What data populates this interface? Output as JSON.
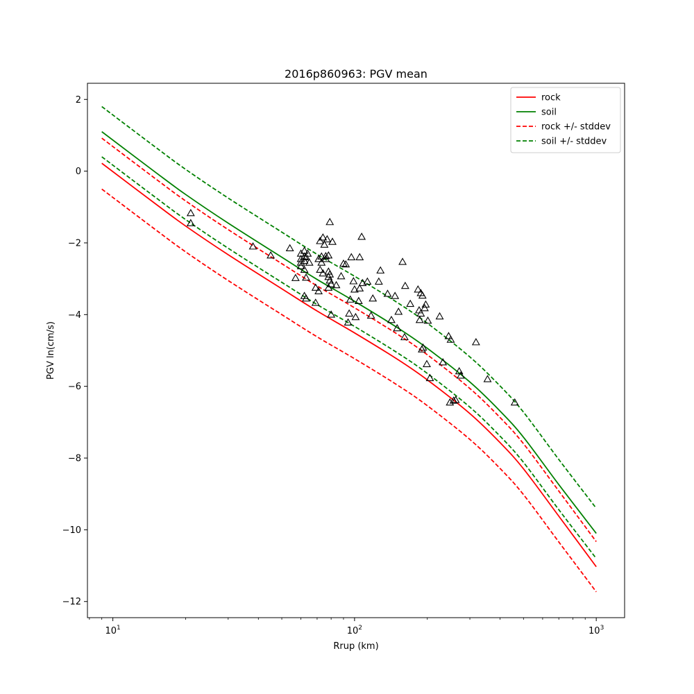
{
  "chart_data": {
    "type": "line",
    "title": "2016p860963: PGV mean",
    "xlabel": "Rrup (km)",
    "ylabel": "PGV ln(cm/s)",
    "xscale": "log",
    "xlim": [
      7.85,
      1310
    ],
    "ylim": [
      -12.45,
      2.45
    ],
    "grid": false,
    "legend_position": "top-right",
    "x_ticks": [
      {
        "value": 10,
        "base": "10",
        "exp": "1"
      },
      {
        "value": 100,
        "base": "10",
        "exp": "2"
      },
      {
        "value": 1000,
        "base": "10",
        "exp": "3"
      }
    ],
    "y_ticks": [
      {
        "value": 2,
        "label": "2"
      },
      {
        "value": 0,
        "label": "0"
      },
      {
        "value": -2,
        "label": "−2"
      },
      {
        "value": -4,
        "label": "−4"
      },
      {
        "value": -6,
        "label": "−6"
      },
      {
        "value": -8,
        "label": "−8"
      },
      {
        "value": -10,
        "label": "−10"
      },
      {
        "value": -12,
        "label": "−12"
      }
    ],
    "x": [
      9,
      15,
      20,
      30,
      50,
      70,
      100,
      150,
      200,
      300,
      400,
      500,
      700,
      1000
    ],
    "series": [
      {
        "name": "rock",
        "color": "#ff0000",
        "dashed": false,
        "values": [
          0.22,
          -0.91,
          -1.53,
          -2.33,
          -3.28,
          -3.9,
          -4.51,
          -5.24,
          -5.82,
          -6.76,
          -7.57,
          -8.3,
          -9.62,
          -11.03
        ]
      },
      {
        "name": "soil",
        "color": "#008000",
        "dashed": false,
        "values": [
          1.1,
          -0.03,
          -0.65,
          -1.45,
          -2.4,
          -3.02,
          -3.63,
          -4.36,
          -4.94,
          -5.88,
          -6.69,
          -7.42,
          -8.74,
          -10.1
        ]
      },
      {
        "name": "rock +/- stddev",
        "color": "#ff0000",
        "dashed": true,
        "values": [
          0.92,
          -0.21,
          -0.83,
          -1.63,
          -2.58,
          -3.2,
          -3.81,
          -4.54,
          -5.12,
          -6.06,
          -6.87,
          -7.6,
          -8.92,
          -10.33
        ]
      },
      {
        "name": "",
        "color": "#ff0000",
        "dashed": true,
        "legend": false,
        "values": [
          -0.5,
          -1.63,
          -2.25,
          -3.05,
          -4.0,
          -4.62,
          -5.23,
          -5.96,
          -6.54,
          -7.48,
          -8.29,
          -9.02,
          -10.34,
          -11.73
        ]
      },
      {
        "name": "soil +/- stddev",
        "color": "#008000",
        "dashed": true,
        "values": [
          1.8,
          0.67,
          0.05,
          -0.75,
          -1.7,
          -2.32,
          -2.93,
          -3.66,
          -4.24,
          -5.18,
          -5.99,
          -6.72,
          -8.04,
          -9.4
        ]
      },
      {
        "name": "",
        "color": "#008000",
        "dashed": true,
        "legend": false,
        "values": [
          0.4,
          -0.73,
          -1.35,
          -2.15,
          -3.1,
          -3.72,
          -4.33,
          -5.06,
          -5.64,
          -6.58,
          -7.39,
          -8.12,
          -9.44,
          -10.8
        ]
      }
    ],
    "scatter": {
      "marker": "triangle",
      "color": "#000000",
      "points": [
        [
          21,
          -1.17
        ],
        [
          21,
          -1.45
        ],
        [
          38,
          -2.1
        ],
        [
          45,
          -2.35
        ],
        [
          54,
          -2.15
        ],
        [
          57,
          -2.98
        ],
        [
          60,
          -2.3
        ],
        [
          60,
          -2.45
        ],
        [
          60,
          -2.55
        ],
        [
          60,
          -2.65
        ],
        [
          62,
          -2.22
        ],
        [
          62,
          -2.38
        ],
        [
          62,
          -2.5
        ],
        [
          62,
          -2.75
        ],
        [
          62,
          -3.48
        ],
        [
          63,
          -2.4
        ],
        [
          63,
          -2.97
        ],
        [
          63,
          -3.55
        ],
        [
          64,
          -2.3
        ],
        [
          65,
          -2.55
        ],
        [
          69,
          -3.25
        ],
        [
          69,
          -3.67
        ],
        [
          71,
          -2.45
        ],
        [
          71,
          -3.35
        ],
        [
          72,
          -1.95
        ],
        [
          72,
          -2.75
        ],
        [
          73,
          -2.38
        ],
        [
          73,
          -2.55
        ],
        [
          74,
          -1.85
        ],
        [
          74,
          -2.85
        ],
        [
          75,
          -2.05
        ],
        [
          76,
          -2.37
        ],
        [
          76,
          -2.45
        ],
        [
          77,
          -1.9
        ],
        [
          78,
          -2.35
        ],
        [
          78,
          -2.8
        ],
        [
          78,
          -2.95
        ],
        [
          78,
          -3.25
        ],
        [
          79,
          -1.42
        ],
        [
          79,
          -2.88
        ],
        [
          79,
          -3.05
        ],
        [
          80,
          -3.15
        ],
        [
          80,
          -4.0
        ],
        [
          81,
          -1.97
        ],
        [
          84,
          -3.18
        ],
        [
          88,
          -2.93
        ],
        [
          90,
          -2.58
        ],
        [
          92,
          -2.6
        ],
        [
          94,
          -4.22
        ],
        [
          95,
          -3.97
        ],
        [
          96,
          -3.58
        ],
        [
          97,
          -2.4
        ],
        [
          99,
          -3.07
        ],
        [
          100,
          -3.3
        ],
        [
          101,
          -4.07
        ],
        [
          104,
          -3.62
        ],
        [
          105,
          -2.4
        ],
        [
          105,
          -3.27
        ],
        [
          107,
          -1.83
        ],
        [
          108,
          -3.12
        ],
        [
          113,
          -3.08
        ],
        [
          117,
          -4.03
        ],
        [
          119,
          -3.55
        ],
        [
          126,
          -3.08
        ],
        [
          128,
          -2.77
        ],
        [
          137,
          -3.42
        ],
        [
          142,
          -4.15
        ],
        [
          147,
          -3.48
        ],
        [
          150,
          -4.38
        ],
        [
          152,
          -3.92
        ],
        [
          158,
          -2.53
        ],
        [
          161,
          -4.63
        ],
        [
          162,
          -3.2
        ],
        [
          170,
          -3.7
        ],
        [
          183,
          -3.3
        ],
        [
          185,
          -3.88
        ],
        [
          186,
          -4.15
        ],
        [
          188,
          -3.4
        ],
        [
          188,
          -3.97
        ],
        [
          190,
          -4.97
        ],
        [
          191,
          -3.47
        ],
        [
          192,
          -4.92
        ],
        [
          195,
          -3.82
        ],
        [
          197,
          -3.72
        ],
        [
          199,
          -5.38
        ],
        [
          201,
          -4.17
        ],
        [
          205,
          -5.77
        ],
        [
          225,
          -4.05
        ],
        [
          232,
          -5.33
        ],
        [
          245,
          -4.6
        ],
        [
          248,
          -6.45
        ],
        [
          250,
          -4.7
        ],
        [
          257,
          -6.4
        ],
        [
          262,
          -6.38
        ],
        [
          271,
          -5.58
        ],
        [
          275,
          -5.7
        ],
        [
          318,
          -4.77
        ],
        [
          355,
          -5.8
        ],
        [
          460,
          -6.45
        ]
      ]
    }
  }
}
